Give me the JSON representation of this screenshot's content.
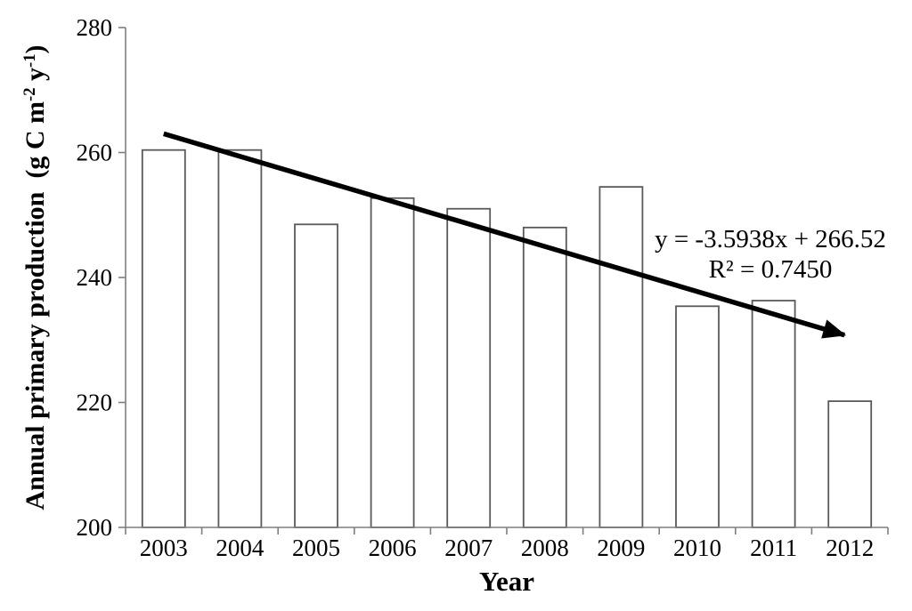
{
  "chart_data": {
    "type": "bar",
    "title": "",
    "categories": [
      "2003",
      "2004",
      "2005",
      "2006",
      "2007",
      "2008",
      "2009",
      "2010",
      "2011",
      "2012"
    ],
    "values": [
      260.4,
      260.4,
      248.5,
      252.7,
      251.0,
      248.0,
      254.5,
      235.4,
      236.3,
      220.2
    ],
    "xlabel": "Year",
    "ylabel": "Annual primary production  (g C m⁻² y⁻¹)",
    "ylabel_parts": [
      "Annual primary production  (g C m",
      "-2",
      " y",
      "-1",
      ")"
    ],
    "ylim": [
      200,
      280
    ],
    "yticks": [
      "200",
      "220",
      "240",
      "260",
      "280"
    ],
    "grid": false,
    "legend": null,
    "bar_fill": "#ffffff",
    "bar_stroke": "#595959",
    "axis_color": "#7f7f7f",
    "text_color": "#000000",
    "trendline": {
      "color": "#000000",
      "start": {
        "category": "2003",
        "value": 263.0
      },
      "end": {
        "category": "2012",
        "value": 230.5
      },
      "equation": "y = -3.5938x + 266.52",
      "r_squared": "R² = 0.7450"
    }
  }
}
